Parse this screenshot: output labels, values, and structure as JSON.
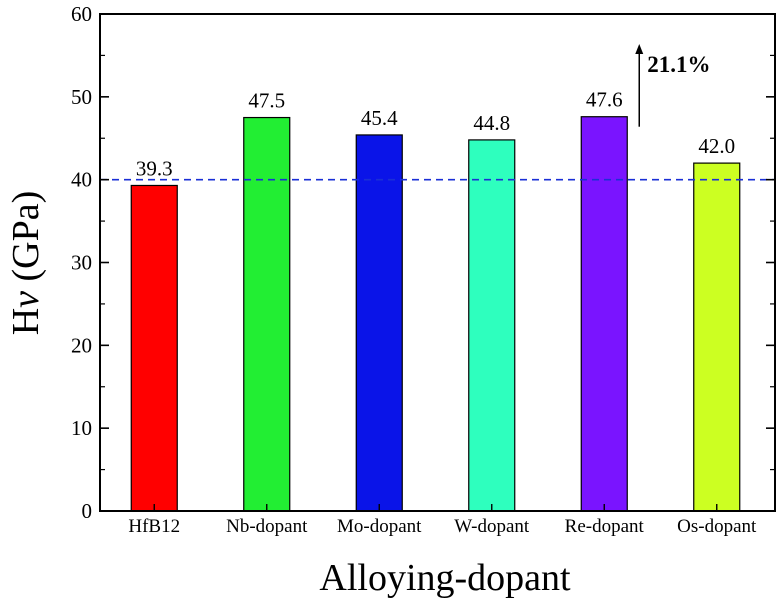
{
  "chart_data": {
    "type": "bar",
    "title": "",
    "xlabel": "Alloying-dopant",
    "ylabel_main": "H",
    "ylabel_italic": "v",
    "ylabel_unit": " (GPa)",
    "categories": [
      "HfB12",
      "Nb-dopant",
      "Mo-dopant",
      "W-dopant",
      "Re-dopant",
      "Os-dopant"
    ],
    "values": [
      39.3,
      47.5,
      45.4,
      44.8,
      47.6,
      42.0
    ],
    "value_labels": [
      "39.3",
      "47.5",
      "45.4",
      "44.8",
      "47.6",
      "42.0"
    ],
    "colors": [
      "#ff0000",
      "#22ee33",
      "#0a14e8",
      "#2effbe",
      "#7a14ff",
      "#ccff22"
    ],
    "ylim": [
      0,
      60
    ],
    "yticks": [
      0,
      10,
      20,
      30,
      40,
      50,
      60
    ],
    "ytick_labels": [
      "0",
      "10",
      "20",
      "30",
      "40",
      "50",
      "60"
    ],
    "reference_line": {
      "value": 40,
      "style": "dashed",
      "color": "#1a2fd6"
    },
    "annotation": {
      "text": "21.1%",
      "category": "Re-dopant"
    },
    "grid": false,
    "legend": "none"
  }
}
